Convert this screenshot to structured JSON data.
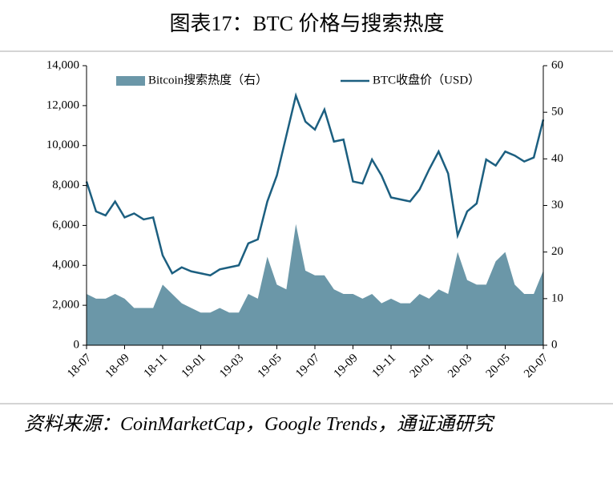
{
  "chart_data": {
    "type": "line-area",
    "title": "图表17：BTC 价格与搜索热度",
    "source": "资料来源：CoinMarketCap，Google Trends，通证通研究",
    "categories": [
      "18-07",
      null,
      null,
      null,
      "18-09",
      null,
      null,
      null,
      "18-11",
      null,
      null,
      null,
      "19-01",
      null,
      null,
      null,
      "19-03",
      null,
      null,
      null,
      "19-05",
      null,
      null,
      null,
      "19-07",
      null,
      null,
      null,
      "19-09",
      null,
      null,
      null,
      "19-11",
      null,
      null,
      null,
      "20-01",
      null,
      null,
      null,
      "20-03",
      null,
      null,
      null,
      "20-05",
      null,
      null,
      null,
      "20-07"
    ],
    "series": [
      {
        "name": "Bitcoin搜索热度（右）",
        "kind": "area",
        "axis": "y2",
        "color": "#6b97a8",
        "values": [
          11,
          10,
          10,
          11,
          10,
          8,
          8,
          8,
          13,
          11,
          9,
          8,
          7,
          7,
          8,
          7,
          7,
          11,
          10,
          19,
          13,
          12,
          26,
          16,
          15,
          15,
          12,
          11,
          11,
          10,
          11,
          9,
          10,
          9,
          9,
          11,
          10,
          12,
          11,
          20,
          14,
          13,
          13,
          18,
          20,
          13,
          11,
          11,
          16
        ]
      },
      {
        "name": "BTC收盘价（USD）",
        "kind": "line",
        "color": "#1c5f80",
        "values": [
          8200,
          6700,
          6500,
          7200,
          6400,
          6600,
          6300,
          6400,
          4500,
          3600,
          3900,
          3700,
          3600,
          3500,
          3800,
          3900,
          4000,
          5100,
          5300,
          7200,
          8500,
          10500,
          12500,
          11200,
          10800,
          11800,
          10200,
          10300,
          8200,
          8100,
          9300,
          8500,
          7400,
          7300,
          7200,
          7800,
          8800,
          9700,
          8600,
          5500,
          6700,
          7100,
          9300,
          9000,
          9700,
          9500,
          9200,
          9400,
          11300
        ]
      }
    ],
    "ylim": [
      0,
      14000
    ],
    "yticks": [
      0,
      {
        "value": 2000,
        "label": "2,000"
      },
      {
        "value": 4000,
        "label": "4,000"
      },
      {
        "value": 6000,
        "label": "6,000"
      },
      {
        "value": 8000,
        "label": "8,000"
      },
      {
        "value": 10000,
        "label": "10,000"
      },
      {
        "value": 12000,
        "label": "12,000"
      },
      {
        "value": 14000,
        "label": "14,000"
      }
    ],
    "y2lim": [
      0,
      60
    ],
    "y2ticks": [
      0,
      10,
      20,
      30,
      40,
      50,
      60
    ]
  }
}
